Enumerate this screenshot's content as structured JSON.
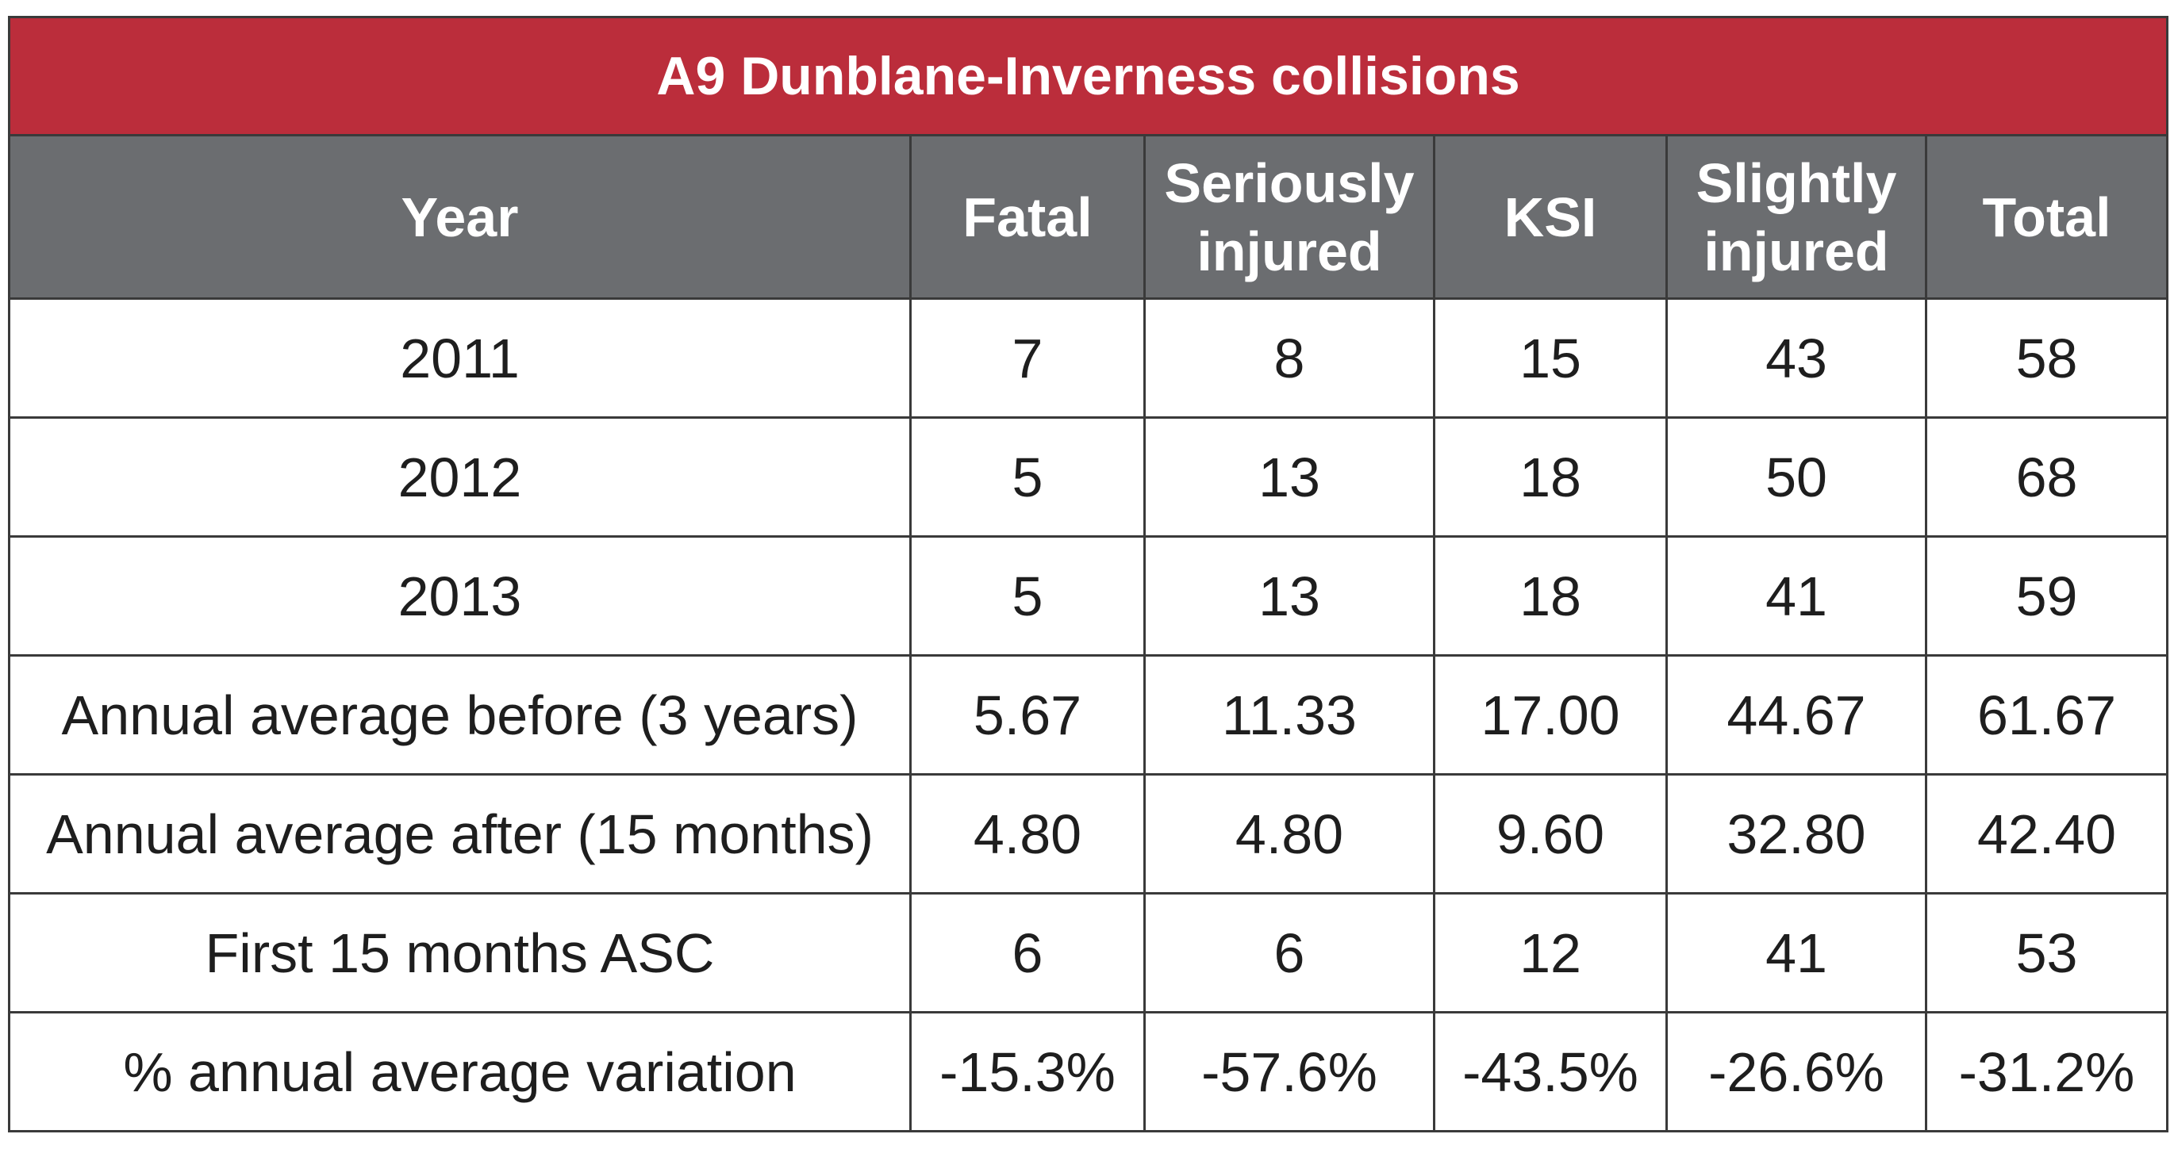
{
  "table": {
    "title": "A9 Dunblane-Inverness collisions",
    "columns": [
      "Year",
      "Fatal",
      "Seriously injured",
      "KSI",
      "Slightly injured",
      "Total"
    ],
    "rows": [
      [
        "2011",
        "7",
        "8",
        "15",
        "43",
        "58"
      ],
      [
        "2012",
        "5",
        "13",
        "18",
        "50",
        "68"
      ],
      [
        "2013",
        "5",
        "13",
        "18",
        "41",
        "59"
      ],
      [
        "Annual average before (3 years)",
        "5.67",
        "11.33",
        "17.00",
        "44.67",
        "61.67"
      ],
      [
        "Annual average after (15 months)",
        "4.80",
        "4.80",
        "9.60",
        "32.80",
        "42.40"
      ],
      [
        "First 15 months ASC",
        "6",
        "6",
        "12",
        "41",
        "53"
      ],
      [
        "% annual average variation",
        "-15.3%",
        "-57.6%",
        "-43.5%",
        "-26.6%",
        "-31.2%"
      ]
    ]
  },
  "colors": {
    "title_background": "#bb2d3b",
    "header_background": "#6b6d70",
    "border": "#3a3a3a"
  }
}
